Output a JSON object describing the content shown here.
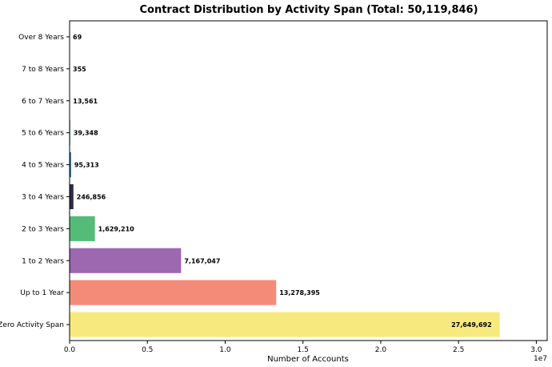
{
  "chart_data": {
    "type": "bar",
    "orientation": "horizontal",
    "title": "Contract Distribution by Activity Span (Total: 50,119,846)",
    "xlabel": "Number of Accounts",
    "ylabel": "",
    "x_scale_note": "1e7",
    "xlim": [
      0,
      30700000.0
    ],
    "xticks": [
      0,
      5000000,
      10000000,
      15000000,
      20000000,
      25000000,
      30000000
    ],
    "xtick_labels": [
      "0.0",
      "0.5",
      "1.0",
      "1.5",
      "2.0",
      "2.5",
      "3.0"
    ],
    "grid": false,
    "categories": [
      "Zero Activity Span",
      "Up to 1 Year",
      "1 to 2 Years",
      "2 to 3 Years",
      "3 to 4 Years",
      "4 to 5 Years",
      "5 to 6 Years",
      "6 to 7 Years",
      "7 to 8 Years",
      "Over 8 Years"
    ],
    "values": [
      27649692,
      13278395,
      7167047,
      1629210,
      246856,
      95313,
      39348,
      13561,
      355,
      69
    ],
    "value_labels": [
      "27,649,692",
      "13,278,395",
      "7,167,047",
      "1,629,210",
      "246,856",
      "95,313",
      "39,348",
      "13,561",
      "355",
      "69"
    ],
    "colors": [
      "#f7e97e",
      "#f48b78",
      "#9d68b0",
      "#55bb78",
      "#2e2b45",
      "#1d6f9c",
      "#2e9a85",
      "#6a3d8a",
      "#7fcf6a",
      "#d4c24a"
    ]
  }
}
